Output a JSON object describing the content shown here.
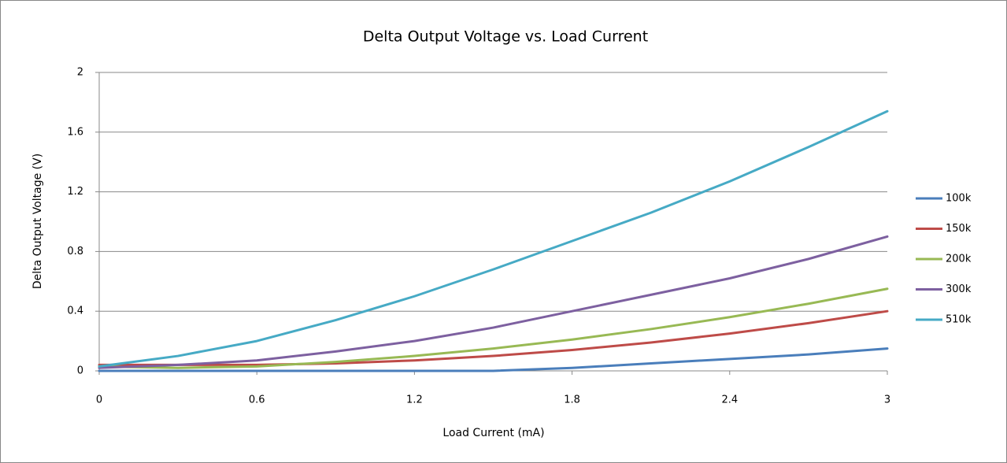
{
  "chart_data": {
    "type": "line",
    "title": "Delta Output Voltage vs. Load Current",
    "xlabel": "Load Current (mA)",
    "ylabel": "Delta Output Voltage (V)",
    "x": [
      0,
      0.3,
      0.6,
      0.9,
      1.2,
      1.5,
      1.8,
      2.1,
      2.4,
      2.7,
      3
    ],
    "series": [
      {
        "name": "100k",
        "color": "#4a7ebb",
        "values": [
          0,
          0,
          0,
          0,
          0,
          0,
          0.02,
          0.05,
          0.08,
          0.11,
          0.15
        ]
      },
      {
        "name": "150k",
        "color": "#be4b48",
        "values": [
          0.04,
          0.04,
          0.04,
          0.05,
          0.07,
          0.1,
          0.14,
          0.19,
          0.25,
          0.32,
          0.4
        ]
      },
      {
        "name": "200k",
        "color": "#98b954",
        "values": [
          0.03,
          0.02,
          0.03,
          0.06,
          0.1,
          0.15,
          0.21,
          0.28,
          0.36,
          0.45,
          0.55
        ]
      },
      {
        "name": "300k",
        "color": "#7d60a0",
        "values": [
          0.02,
          0.04,
          0.07,
          0.13,
          0.2,
          0.29,
          0.4,
          0.51,
          0.62,
          0.75,
          0.9
        ]
      },
      {
        "name": "510k",
        "color": "#46aac5",
        "values": [
          0.03,
          0.1,
          0.2,
          0.34,
          0.5,
          0.68,
          0.87,
          1.06,
          1.27,
          1.5,
          1.74
        ]
      }
    ],
    "xlim": [
      0,
      3
    ],
    "xticks": [
      0,
      0.6,
      1.2,
      1.8,
      2.4,
      3
    ],
    "ylim": [
      0,
      2
    ],
    "yticks": [
      0,
      0.4,
      0.8,
      1.2,
      1.6,
      2
    ],
    "grid": true,
    "legend": "right"
  }
}
